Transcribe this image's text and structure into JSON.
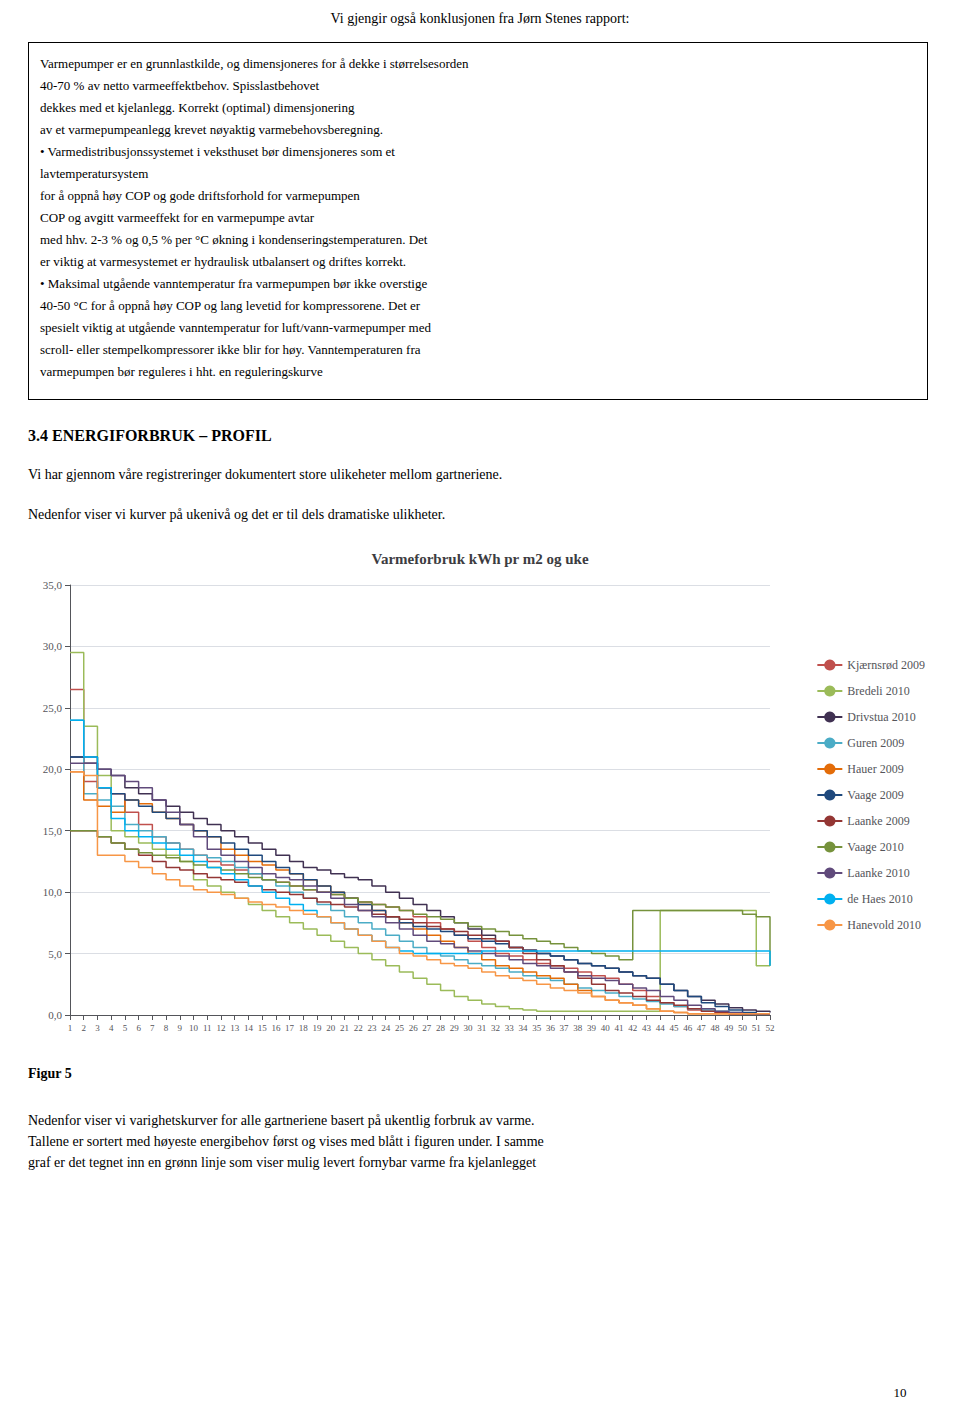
{
  "page_title": "Vi gjengir også konklusjonen fra Jørn Stenes rapport:",
  "box_text_lines": [
    "Varmepumper er en grunnlastkilde, og dimensjoneres for å dekke i størrelsesorden",
    "40-70 % av netto varmeeffektbehov. Spisslastbehovet",
    "dekkes med et kjelanlegg. Korrekt (optimal) dimensjonering",
    "av et varmepumpeanlegg krevet nøyaktig varmebehovsberegning.",
    "• Varmedistribusjonssystemet i veksthuset bør dimensjoneres som et",
    "lavtemperatursystem",
    "for å oppnå høy COP og gode driftsforhold for varmepumpen",
    "COP og avgitt varmeeffekt for en varmepumpe avtar",
    "med hhv. 2-3 % og 0,5 % per °C økning i kondenseringstemperaturen. Det",
    "er viktig at varmesystemet er hydraulisk utbalansert og driftes korrekt.",
    "• Maksimal utgående vanntemperatur fra varmepumpen bør ikke overstige",
    "40-50 °C for å oppnå høy COP og lang levetid for kompressorene. Det er",
    "spesielt viktig at utgående vanntemperatur for luft/vann-varmepumper med",
    "scroll- eller stempelkompressorer ikke blir for høy. Vanntemperaturen fra",
    "varmepumpen bør reguleres i hht. en reguleringskurve"
  ],
  "section_title": "3.4 ENERGIFORBRUK – PROFIL",
  "section_text1": "Vi har gjennom våre registreringer dokumentert store ulikeheter mellom gartneriene.",
  "section_text2": "Nedenfor viser vi kurver på ukenivå og det er til dels dramatiske ulikheter.",
  "footer_label": "Figur 5",
  "footer_body": "Nedenfor viser vi varighetskurver for alle gartneriene basert på ukentlig forbruk av varme.\nTallene er sortert med høyeste energibehov først og vises med blått i figuren under.  I samme\ngraf er det tegnet inn en grønn linje som viser mulig levert fornybar varme fra kjelanlegget",
  "page_number": "10",
  "chart_data": {
    "type": "step",
    "title": "Varmeforbruk kWh pr m2 og uke",
    "x": [
      1,
      2,
      3,
      4,
      5,
      6,
      7,
      8,
      9,
      10,
      11,
      12,
      13,
      14,
      15,
      16,
      17,
      18,
      19,
      20,
      21,
      22,
      23,
      24,
      25,
      26,
      27,
      28,
      29,
      30,
      31,
      32,
      33,
      34,
      35,
      36,
      37,
      38,
      39,
      40,
      41,
      42,
      43,
      44,
      45,
      46,
      47,
      48,
      49,
      50,
      51,
      52
    ],
    "xlim": [
      1,
      52
    ],
    "xticks": [
      1,
      2,
      3,
      4,
      5,
      6,
      7,
      8,
      9,
      10,
      11,
      12,
      13,
      14,
      15,
      16,
      17,
      18,
      19,
      20,
      21,
      22,
      23,
      24,
      25,
      26,
      27,
      28,
      29,
      30,
      31,
      32,
      33,
      34,
      35,
      36,
      37,
      38,
      39,
      40,
      41,
      42,
      43,
      44,
      45,
      46,
      47,
      48,
      49,
      50,
      51,
      52
    ],
    "ylim": [
      0,
      35
    ],
    "yticks": [
      {
        "value": 0,
        "label": "0,0"
      },
      {
        "value": 5,
        "label": "5,0"
      },
      {
        "value": 10,
        "label": "10,0"
      },
      {
        "value": 15,
        "label": "15,0"
      },
      {
        "value": 20,
        "label": "20,0"
      },
      {
        "value": 25,
        "label": "25,0"
      },
      {
        "value": 30,
        "label": "30,0"
      },
      {
        "value": 35,
        "label": "35,0"
      }
    ],
    "grid": true,
    "legend": "right",
    "series": [
      {
        "name": "Kjærnsrød 2009",
        "color": "#C0504D",
        "values": [
          26.5,
          19.0,
          18.5,
          18.0,
          16.5,
          15.5,
          14.5,
          14.0,
          13.5,
          13.0,
          12.5,
          12.2,
          11.8,
          11.5,
          11.0,
          10.8,
          10.5,
          10.2,
          10.0,
          9.8,
          9.5,
          9.2,
          9.0,
          8.8,
          8.5,
          8.0,
          7.5,
          7.0,
          6.5,
          6.0,
          5.5,
          5.0,
          4.8,
          4.5,
          4.2,
          4.0,
          3.8,
          3.5,
          3.2,
          3.0,
          2.5,
          2.0,
          1.5,
          1.0,
          0.7,
          0.4,
          0.3,
          0.2,
          0.1,
          0.1,
          0.1,
          0.1
        ]
      },
      {
        "name": "Bredeli 2010",
        "color": "#9BBB59",
        "values": [
          29.5,
          23.5,
          19.5,
          15.0,
          14.5,
          14.0,
          13.5,
          13.0,
          12.5,
          11.0,
          10.5,
          10.0,
          9.5,
          9.0,
          8.5,
          8.0,
          7.5,
          7.0,
          6.5,
          6.0,
          5.5,
          5.0,
          4.5,
          4.0,
          3.5,
          3.0,
          2.5,
          2.0,
          1.5,
          1.2,
          0.9,
          0.7,
          0.5,
          0.4,
          0.3,
          0.3,
          0.3,
          0.3,
          0.3,
          0.3,
          0.3,
          0.3,
          0.3,
          8.5,
          8.5,
          8.5,
          8.5,
          8.5,
          8.5,
          8.5,
          4.0,
          4.0
        ]
      },
      {
        "name": "Drivstua 2010",
        "color": "#403152",
        "values": [
          21.0,
          20.5,
          20.0,
          19.5,
          18.5,
          18.0,
          17.5,
          17.0,
          16.5,
          16.0,
          15.5,
          15.0,
          14.5,
          14.0,
          13.5,
          13.0,
          12.5,
          12.0,
          11.8,
          11.5,
          11.2,
          11.0,
          10.5,
          10.0,
          9.5,
          9.0,
          8.5,
          8.0,
          7.5,
          7.0,
          6.5,
          6.0,
          5.5,
          5.3,
          5.0,
          4.8,
          4.5,
          4.2,
          4.0,
          3.8,
          3.5,
          3.2,
          3.0,
          2.5,
          2.0,
          1.5,
          1.2,
          0.9,
          0.6,
          0.4,
          0.3,
          0.2
        ]
      },
      {
        "name": "Guren 2009",
        "color": "#4BACC6",
        "values": [
          24.0,
          18.0,
          17.5,
          17.0,
          15.5,
          15.0,
          14.5,
          14.0,
          13.5,
          13.0,
          12.8,
          12.5,
          12.0,
          11.5,
          11.0,
          10.5,
          10.0,
          9.5,
          9.0,
          8.5,
          8.0,
          7.5,
          7.0,
          6.5,
          6.0,
          5.5,
          5.0,
          4.8,
          4.5,
          4.2,
          4.0,
          3.8,
          3.5,
          3.2,
          3.0,
          2.8,
          2.5,
          2.2,
          2.0,
          1.8,
          1.5,
          1.3,
          1.1,
          0.9,
          0.7,
          0.5,
          0.4,
          0.3,
          0.2,
          0.1,
          0.1,
          0.1
        ]
      },
      {
        "name": "Hauer 2009",
        "color": "#E36C09",
        "values": [
          19.8,
          17.5,
          17.0,
          16.5,
          17.5,
          17.2,
          16.5,
          16.0,
          15.5,
          15.0,
          14.5,
          13.5,
          13.0,
          12.5,
          12.2,
          11.8,
          11.5,
          11.0,
          10.5,
          10.0,
          9.5,
          9.0,
          8.5,
          8.0,
          7.5,
          7.0,
          6.5,
          6.0,
          5.5,
          5.0,
          4.5,
          4.0,
          3.8,
          3.5,
          3.2,
          3.0,
          2.5,
          2.0,
          1.5,
          1.2,
          1.0,
          0.8,
          0.5,
          0.3,
          0.2,
          0.1,
          0.1,
          0.1,
          0.1,
          0.1,
          0.1,
          0.1
        ]
      },
      {
        "name": "Vaage 2009",
        "color": "#1F497D",
        "values": [
          21.0,
          21.0,
          18.5,
          18.0,
          17.5,
          17.0,
          16.5,
          16.0,
          15.5,
          15.0,
          14.5,
          14.0,
          13.5,
          13.0,
          12.5,
          12.0,
          11.5,
          11.0,
          10.5,
          10.0,
          9.5,
          9.0,
          8.5,
          8.0,
          7.5,
          7.2,
          7.0,
          6.8,
          6.5,
          6.2,
          6.0,
          5.8,
          5.5,
          5.2,
          5.0,
          4.8,
          4.5,
          4.2,
          4.0,
          3.8,
          3.5,
          3.2,
          3.0,
          2.5,
          2.0,
          1.5,
          1.0,
          0.7,
          0.4,
          0.2,
          0.1,
          0.1
        ]
      },
      {
        "name": "Laanke 2009",
        "color": "#943634",
        "values": [
          15.0,
          15.0,
          14.5,
          14.0,
          13.5,
          13.0,
          12.5,
          12.0,
          11.8,
          11.5,
          11.2,
          11.0,
          10.8,
          10.5,
          10.2,
          10.0,
          9.8,
          9.5,
          9.2,
          9.0,
          8.8,
          8.5,
          8.2,
          8.0,
          7.8,
          7.5,
          7.2,
          7.0,
          6.8,
          6.5,
          6.2,
          6.0,
          5.5,
          5.0,
          4.5,
          4.0,
          3.5,
          3.0,
          2.5,
          2.0,
          1.8,
          1.5,
          1.2,
          1.0,
          0.8,
          0.5,
          0.3,
          0.2,
          0.1,
          0.1,
          0.1,
          0.1
        ]
      },
      {
        "name": "Vaage 2010",
        "color": "#76923C",
        "values": [
          15.0,
          15.0,
          14.5,
          14.0,
          13.5,
          13.2,
          13.0,
          12.8,
          12.5,
          12.2,
          12.0,
          11.8,
          11.5,
          11.2,
          11.0,
          10.8,
          10.5,
          10.2,
          10.0,
          9.8,
          9.5,
          9.2,
          9.0,
          8.8,
          8.5,
          8.2,
          8.0,
          7.8,
          7.5,
          7.2,
          7.0,
          6.8,
          6.5,
          6.2,
          6.0,
          5.8,
          5.5,
          5.2,
          5.0,
          4.8,
          4.5,
          8.5,
          8.5,
          8.5,
          8.5,
          8.5,
          8.5,
          8.5,
          8.5,
          8.2,
          8.0,
          4.0
        ]
      },
      {
        "name": "Laanke 2010",
        "color": "#604A7B",
        "values": [
          20.5,
          20.5,
          20.0,
          19.5,
          19.0,
          18.5,
          17.5,
          16.5,
          15.5,
          14.5,
          13.5,
          13.0,
          12.5,
          12.0,
          11.5,
          11.2,
          11.0,
          10.5,
          10.0,
          9.5,
          9.0,
          8.5,
          8.0,
          7.5,
          7.0,
          6.5,
          6.0,
          5.8,
          5.5,
          5.2,
          5.0,
          4.8,
          4.5,
          4.2,
          4.0,
          3.8,
          3.5,
          3.2,
          3.0,
          2.8,
          2.5,
          2.2,
          2.0,
          1.5,
          1.2,
          0.8,
          0.5,
          0.3,
          0.2,
          0.1,
          0.1,
          0.1
        ]
      },
      {
        "name": "de Haes 2010",
        "color": "#00B0F0",
        "values": [
          24.0,
          21.0,
          18.5,
          16.0,
          15.0,
          14.5,
          14.0,
          13.5,
          13.0,
          12.5,
          12.0,
          11.5,
          11.0,
          10.5,
          10.0,
          9.5,
          9.0,
          8.5,
          8.0,
          7.5,
          7.0,
          6.5,
          6.0,
          5.5,
          5.2,
          5.0,
          5.0,
          5.0,
          5.0,
          5.0,
          5.2,
          5.2,
          5.2,
          5.2,
          5.2,
          5.2,
          5.2,
          5.2,
          5.2,
          5.2,
          5.2,
          5.2,
          5.2,
          5.2,
          5.2,
          5.2,
          5.2,
          5.2,
          5.2,
          5.2,
          5.2,
          4.0
        ]
      },
      {
        "name": "Hanevold 2010",
        "color": "#F79646",
        "values": [
          19.8,
          19.5,
          13.0,
          13.0,
          12.5,
          12.0,
          11.5,
          11.0,
          10.5,
          10.2,
          10.0,
          9.8,
          9.5,
          9.2,
          9.0,
          8.8,
          8.5,
          8.2,
          8.0,
          7.5,
          7.0,
          6.5,
          6.0,
          5.5,
          5.0,
          4.8,
          4.5,
          4.2,
          4.0,
          3.8,
          3.5,
          3.2,
          3.0,
          2.8,
          2.5,
          2.2,
          2.0,
          1.8,
          1.5,
          1.2,
          1.0,
          0.8,
          0.5,
          0.3,
          0.2,
          0.1,
          0.1,
          0.1,
          0.1,
          0.1,
          0.1,
          0.1
        ]
      }
    ]
  }
}
